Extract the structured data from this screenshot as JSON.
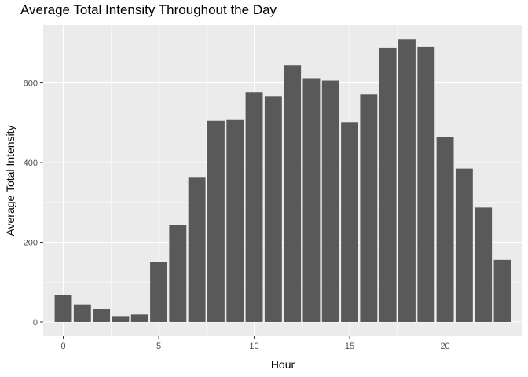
{
  "chart_data": {
    "type": "bar",
    "title": "Average Total Intensity Throughout the Day",
    "xlabel": "Hour",
    "ylabel": "Average Total Intensity",
    "x": [
      0,
      1,
      2,
      3,
      4,
      5,
      6,
      7,
      8,
      9,
      10,
      11,
      12,
      13,
      14,
      15,
      16,
      17,
      18,
      19,
      20,
      21,
      22,
      23
    ],
    "values": [
      67,
      44,
      32,
      15,
      19,
      150,
      244,
      364,
      505,
      507,
      577,
      567,
      644,
      612,
      606,
      502,
      571,
      688,
      709,
      690,
      465,
      385,
      287,
      156
    ],
    "xlim": [
      -1.05,
      24.05
    ],
    "ylim": [
      -35.5,
      745
    ],
    "x_ticks": [
      0,
      5,
      10,
      15,
      20
    ],
    "y_ticks": [
      0,
      200,
      400,
      600
    ],
    "grid": true,
    "colors": {
      "bar": "#595959",
      "panel": "#ebebeb",
      "grid_major": "#ffffff",
      "tick": "#333333"
    }
  }
}
